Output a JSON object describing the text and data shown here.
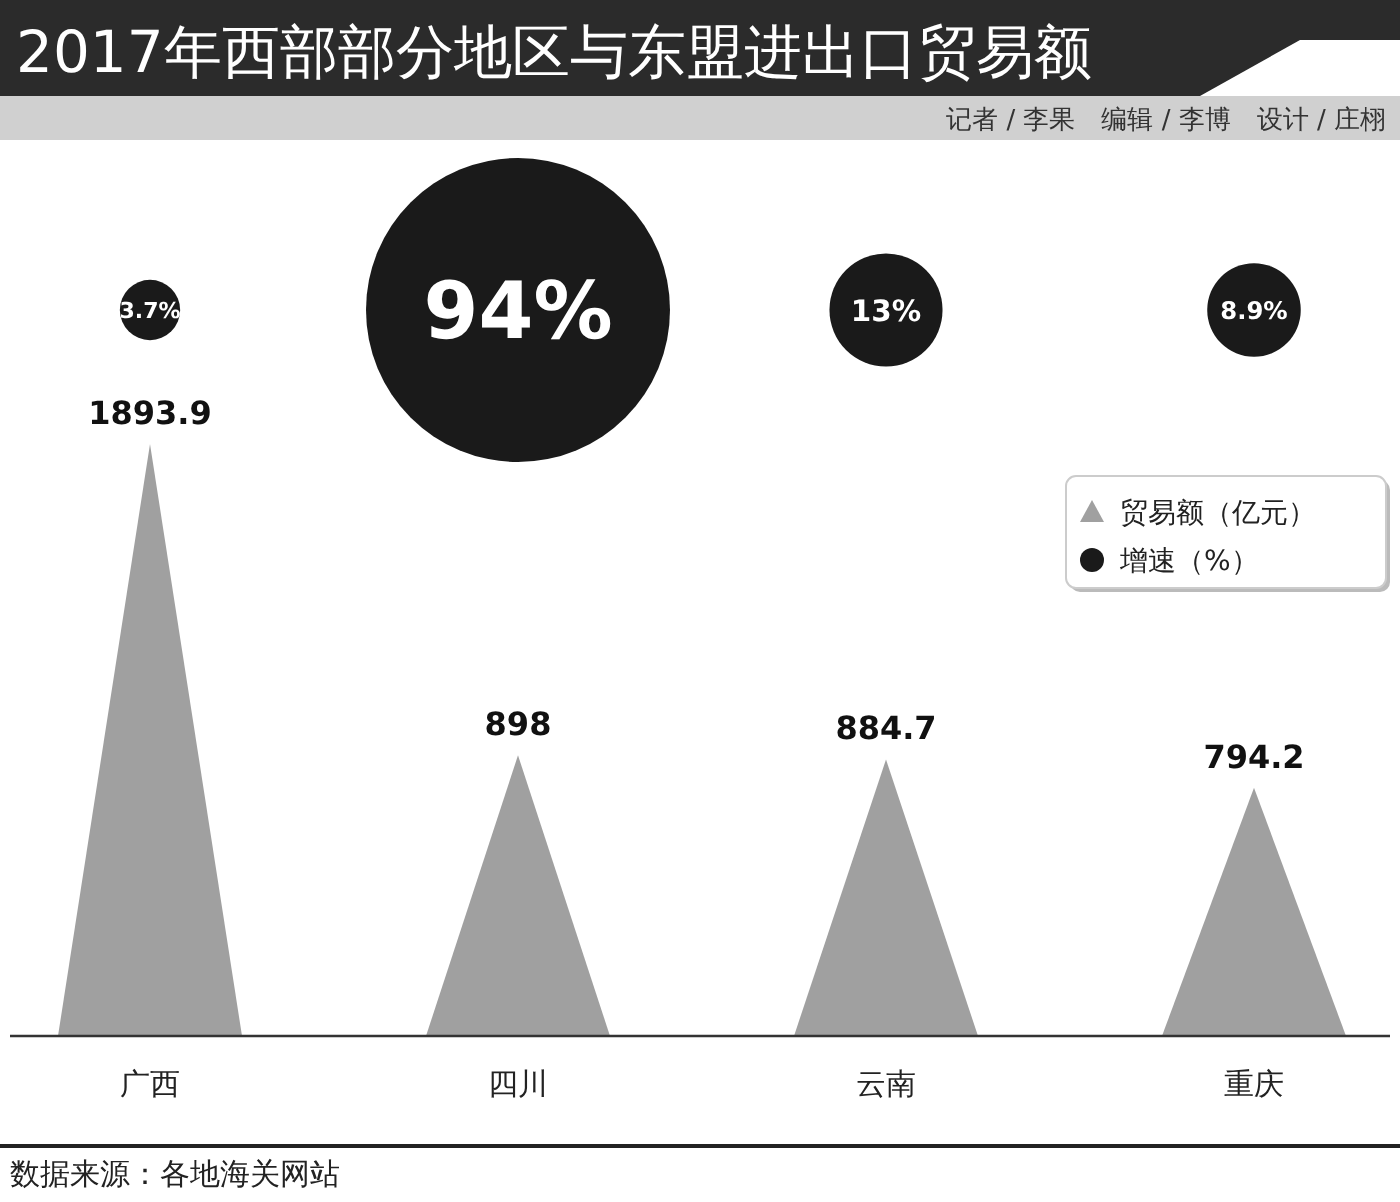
{
  "chart_data": {
    "type": "other",
    "title": "2017年西部部分地区与东盟进出口贸易额",
    "subtitle": "记者 / 李果　编辑 / 李博　设计 / 庄栩",
    "categories": [
      "广西",
      "四川",
      "云南",
      "重庆"
    ],
    "series": [
      {
        "name": "贸易额（亿元）",
        "type": "bar",
        "color": "#a0a0a0",
        "values": [
          1893.9,
          898,
          884.7,
          794.2
        ],
        "value_labels": [
          "1893.9",
          "898",
          "884.7",
          "794.2"
        ]
      },
      {
        "name": "增速（%）",
        "type": "bubble",
        "color": "#1a1a1a",
        "values": [
          3.7,
          94,
          13,
          8.9
        ],
        "value_labels": [
          "3.7%",
          "94%",
          "13%",
          "8.9%"
        ]
      }
    ],
    "legend": "right",
    "annotations": [
      "数据来源：各地海关网站"
    ]
  }
}
